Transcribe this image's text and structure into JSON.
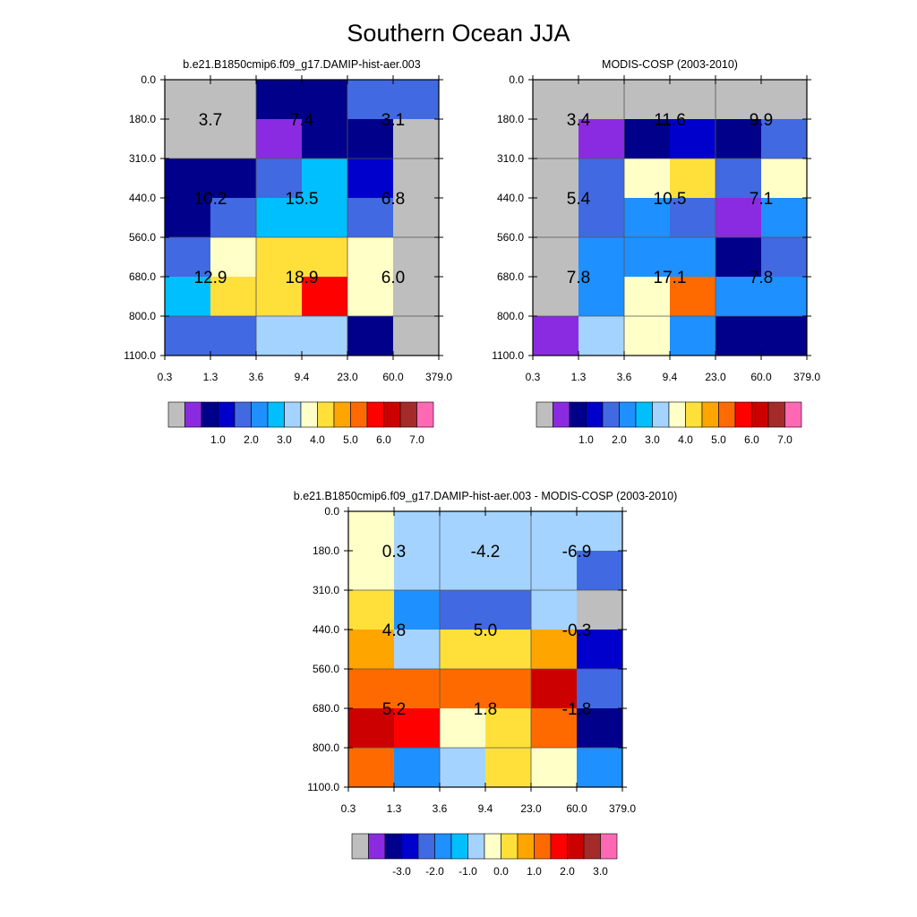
{
  "title": "Southern Ocean JJA",
  "palette": [
    "#bebebe",
    "#8a2be2",
    "#00008b",
    "#0000cd",
    "#4169e1",
    "#1e90ff",
    "#00bfff",
    "#a4d3ff",
    "#ffffc8",
    "#ffe03a",
    "#ffa500",
    "#ff6a00",
    "#ff0000",
    "#cd0000",
    "#a52a2a",
    "#ff69b4"
  ],
  "panels": [
    {
      "title": "b.e21.B1850cmip6.f09_g17.DAMIP-hist-aer.003",
      "x_ticks": [
        "0.3",
        "1.3",
        "3.6",
        "9.4",
        "23.0",
        "60.0",
        "379.0"
      ],
      "y_ticks": [
        "0.0",
        "180.0",
        "310.0",
        "440.0",
        "560.0",
        "680.0",
        "800.0",
        "1100.0"
      ],
      "colorbar_labels": [
        "1.0",
        "2.0",
        "3.0",
        "4.0",
        "5.0",
        "6.0",
        "7.0"
      ],
      "cells": [
        [
          0,
          0,
          2,
          2,
          4,
          4
        ],
        [
          0,
          0,
          1,
          2,
          2,
          0
        ],
        [
          2,
          2,
          4,
          6,
          3,
          0
        ],
        [
          2,
          4,
          6,
          6,
          4,
          0
        ],
        [
          4,
          8,
          9,
          9,
          8,
          0
        ],
        [
          6,
          9,
          9,
          12,
          8,
          0
        ],
        [
          4,
          4,
          7,
          7,
          2,
          0
        ]
      ],
      "box_values": [
        [
          "3.7",
          "7.4",
          "3.1"
        ],
        [
          "10.2",
          "15.5",
          "6.8"
        ],
        [
          "12.9",
          "18.9",
          "6.0"
        ]
      ]
    },
    {
      "title": "MODIS-COSP (2003-2010)",
      "x_ticks": [
        "0.3",
        "1.3",
        "3.6",
        "9.4",
        "23.0",
        "60.0",
        "379.0"
      ],
      "y_ticks": [
        "0.0",
        "180.0",
        "310.0",
        "440.0",
        "560.0",
        "680.0",
        "800.0",
        "1100.0"
      ],
      "colorbar_labels": [
        "1.0",
        "2.0",
        "3.0",
        "4.0",
        "5.0",
        "6.0",
        "7.0"
      ],
      "cells": [
        [
          0,
          0,
          0,
          0,
          0,
          0
        ],
        [
          0,
          1,
          2,
          3,
          2,
          4
        ],
        [
          0,
          4,
          8,
          9,
          4,
          8
        ],
        [
          0,
          4,
          5,
          4,
          1,
          5
        ],
        [
          0,
          5,
          5,
          5,
          2,
          4
        ],
        [
          0,
          5,
          8,
          11,
          5,
          5
        ],
        [
          1,
          7,
          8,
          5,
          2,
          2
        ]
      ],
      "box_values": [
        [
          "3.4",
          "11.6",
          "9.9"
        ],
        [
          "5.4",
          "10.5",
          "7.1"
        ],
        [
          "7.8",
          "17.1",
          "7.8"
        ]
      ]
    },
    {
      "title": "b.e21.B1850cmip6.f09_g17.DAMIP-hist-aer.003 - MODIS-COSP (2003-2010)",
      "x_ticks": [
        "0.3",
        "1.3",
        "3.6",
        "9.4",
        "23.0",
        "60.0",
        "379.0"
      ],
      "y_ticks": [
        "0.0",
        "180.0",
        "310.0",
        "440.0",
        "560.0",
        "680.0",
        "800.0",
        "1100.0"
      ],
      "colorbar_labels": [
        "-3.0",
        "-2.0",
        "-1.0",
        "0.0",
        "1.0",
        "2.0",
        "3.0"
      ],
      "cells": [
        [
          8,
          7,
          7,
          7,
          7,
          7
        ],
        [
          8,
          7,
          7,
          7,
          7,
          4
        ],
        [
          9,
          5,
          4,
          4,
          7,
          0
        ],
        [
          10,
          7,
          9,
          9,
          10,
          3
        ],
        [
          11,
          11,
          11,
          11,
          13,
          4
        ],
        [
          13,
          12,
          8,
          9,
          11,
          2
        ],
        [
          11,
          5,
          7,
          9,
          8,
          5
        ]
      ],
      "box_values": [
        [
          "0.3",
          "-4.2",
          "-6.9"
        ],
        [
          "4.8",
          "5.0",
          "-0.3"
        ],
        [
          "5.2",
          "1.8",
          "-1.8"
        ]
      ]
    }
  ]
}
